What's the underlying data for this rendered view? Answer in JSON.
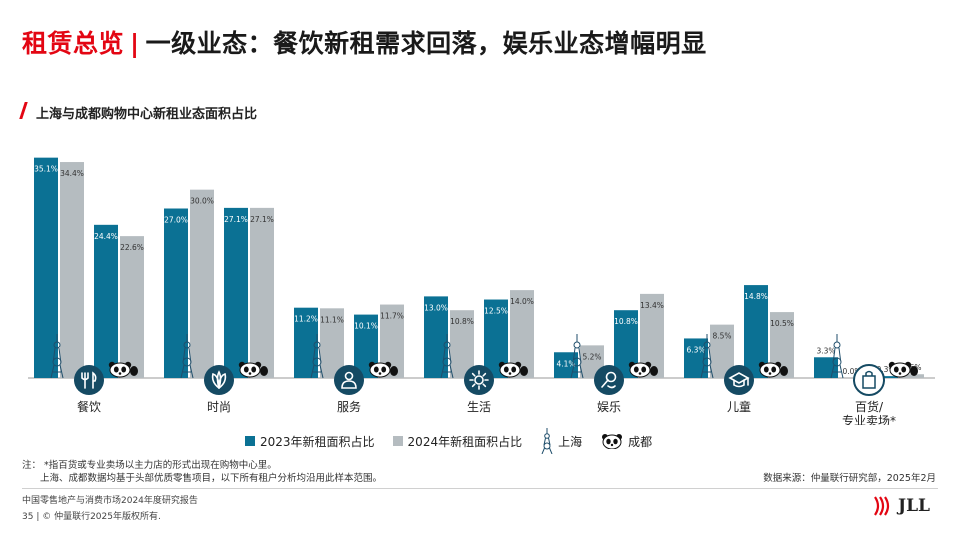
{
  "header": {
    "title_red": "租赁总览",
    "title_sep": "|",
    "title_black": "一级业态：餐饮新租需求回落，娱乐业态增幅明显"
  },
  "chart_data": {
    "type": "bar",
    "title": "上海与成都购物中心新租业态面积占比",
    "categories": [
      "餐饮",
      "时尚",
      "服务",
      "生活",
      "娱乐",
      "儿童",
      "百货/\n专业卖场*"
    ],
    "category_lines": [
      [
        "餐饮"
      ],
      [
        "时尚"
      ],
      [
        "服务"
      ],
      [
        "生活"
      ],
      [
        "娱乐"
      ],
      [
        "儿童"
      ],
      [
        "百货/",
        "专业卖场*"
      ]
    ],
    "icons": [
      "fork-knife-icon",
      "leaf-icon",
      "person-icon",
      "sun-icon",
      "microphone-icon",
      "graduation-cap-icon",
      "shopping-bag-icon"
    ],
    "cities": [
      "上海",
      "成都"
    ],
    "series": [
      {
        "name": "2023年新租面积占比",
        "color": "#0b7194",
        "shanghai": [
          35.1,
          27.0,
          11.2,
          13.0,
          4.1,
          6.3,
          3.3
        ],
        "chengdu": [
          24.4,
          27.1,
          10.1,
          12.5,
          10.8,
          14.8,
          0.3
        ]
      },
      {
        "name": "2024年新租面积占比",
        "color": "#b5bcc0",
        "shanghai": [
          34.4,
          30.0,
          11.1,
          10.8,
          5.2,
          8.5,
          0.0
        ],
        "chengdu": [
          22.6,
          27.1,
          11.7,
          14.0,
          13.4,
          10.5,
          0.6
        ]
      }
    ],
    "unit": "%",
    "ylim": [
      0,
      36
    ],
    "legend_position": "bottom"
  },
  "legend": {
    "s2023": "2023年新租面积占比",
    "s2024": "2024年新租面积占比",
    "shanghai": "上海",
    "chengdu": "成都"
  },
  "notes": {
    "line1": "注：  *指百货或专业卖场以主力店的形式出现在购物中心里。",
    "line2": "上海、成都数据均基于头部优质零售项目，以下所有租户分析均沿用此样本范围。",
    "source": "数据来源：仲量联行研究部，2025年2月"
  },
  "footer": {
    "report": "中国零售地产与消费市场2024年度研究报告",
    "page": "35",
    "copyright": "© 仲量联行2025年版权所有."
  },
  "logo": {
    "text": "JLL"
  }
}
